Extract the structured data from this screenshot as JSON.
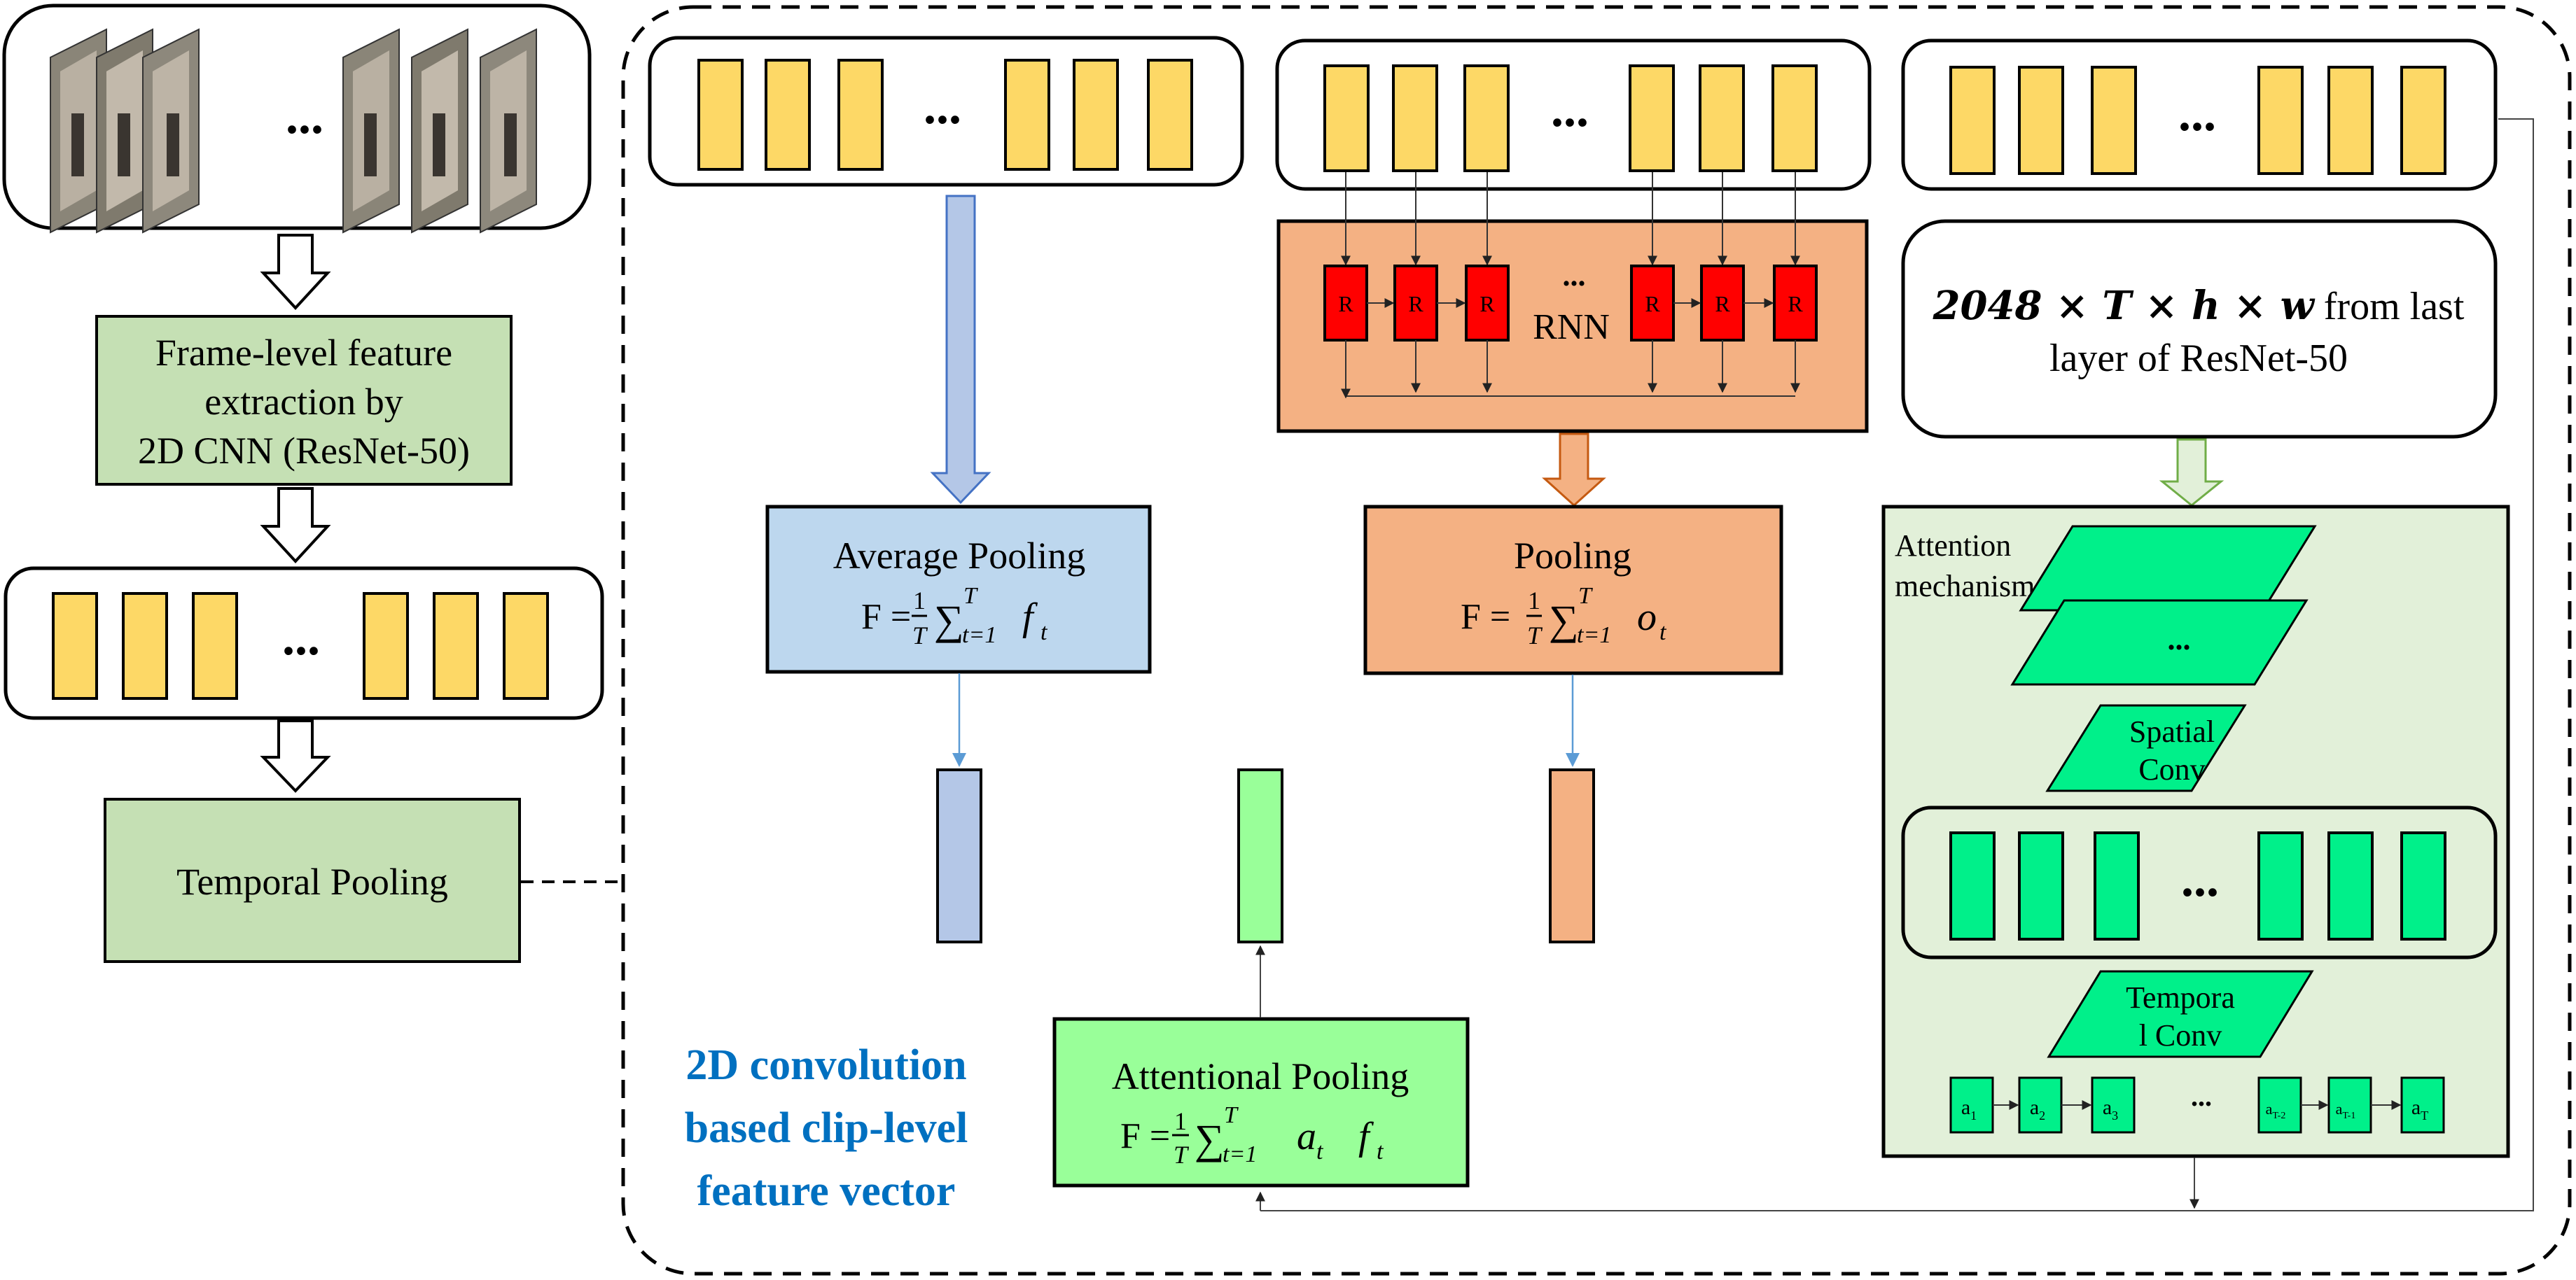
{
  "colors": {
    "feature_yellow": "#FDD866",
    "label_green": "#C5E0B4",
    "avg_blue": "#BDD7EE",
    "avg_bar_blue": "#B4C7E7",
    "rnn_orange": "#F4B183",
    "rnn_red": "#FF0000",
    "att_green": "#00F08A",
    "att_pool_green": "#99FF99",
    "caption_blue": "#0070C0"
  },
  "left_pipeline": {
    "frames_dots": "...",
    "extraction_label": [
      "Frame-level feature",
      "extraction by",
      "2D CNN (ResNet-50)"
    ],
    "features_dots": "...",
    "temporal_pooling_label": "Temporal Pooling"
  },
  "avg_branch": {
    "dots": "...",
    "title": "Average Pooling",
    "formula": {
      "lhs": "F =",
      "frac_num": "1",
      "frac_den": "T",
      "sum": "∑",
      "sum_sup": "T",
      "sum_sub": "t=1",
      "term": "f",
      "term_sub": "t"
    }
  },
  "rnn_branch": {
    "dots": "...",
    "cell_label": "R",
    "rnn_label": "RNN",
    "rnn_dots": "...",
    "title": "Pooling",
    "formula": {
      "lhs": "F =",
      "frac_num": "1",
      "frac_den": "T",
      "sum": "∑",
      "sum_sup": "T",
      "sum_sub": "t=1",
      "term": "o",
      "term_sub": "t"
    }
  },
  "attention_branch": {
    "dots": "...",
    "resnet_line1": {
      "bold": "2048 × T × h × w",
      "rest": " from last"
    },
    "resnet_line2": "layer of ResNet-50",
    "mechanism_label": [
      "Attention",
      "mechanism"
    ],
    "stack_dots": "...",
    "spatial_conv": [
      "Spatial",
      "Conv"
    ],
    "inner_dots": "...",
    "temporal_conv": [
      "Tempora",
      "l Conv"
    ],
    "a_labels": [
      {
        "base": "a",
        "sub": "1"
      },
      {
        "base": "a",
        "sub": "2"
      },
      {
        "base": "a",
        "sub": "3"
      },
      {
        "base": "a",
        "sub": "T-2"
      },
      {
        "base": "a",
        "sub": "T-1"
      },
      {
        "base": "a",
        "sub": "T"
      }
    ],
    "a_dots": "...",
    "pool_title": "Attentional Pooling",
    "formula": {
      "lhs": "F =",
      "frac_num": "1",
      "frac_den": "T",
      "sum": "∑",
      "sum_sup": "T",
      "sum_sub": "t=1",
      "term": "a",
      "term_sub": "t",
      "term2": "f",
      "term2_sub": "t"
    }
  },
  "caption": [
    "2D convolution",
    "based clip-level",
    "feature vector"
  ]
}
